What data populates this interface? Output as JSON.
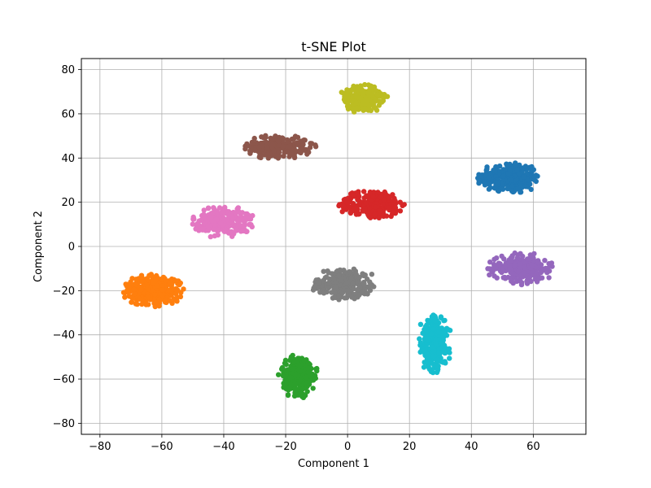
{
  "chart_data": {
    "type": "scatter",
    "title": "t-SNE Plot",
    "xlabel": "Component 1",
    "ylabel": "Component 2",
    "xlim": [
      -86,
      77
    ],
    "ylim": [
      -85,
      85
    ],
    "xticks": [
      -80,
      -60,
      -40,
      -20,
      0,
      20,
      40,
      60
    ],
    "yticks": [
      -80,
      -60,
      -40,
      -20,
      0,
      20,
      40,
      60,
      80
    ],
    "xtick_labels": [
      "−80",
      "−60",
      "−40",
      "−20",
      "0",
      "20",
      "40",
      "60"
    ],
    "ytick_labels": [
      "−80",
      "−60",
      "−40",
      "−20",
      "0",
      "20",
      "40",
      "60",
      "80"
    ],
    "grid": true,
    "legend": false,
    "clusters": [
      {
        "color": "#1f77b4",
        "center": [
          52,
          31
        ],
        "spread": [
          7,
          5
        ],
        "count": 260
      },
      {
        "color": "#ff7f0e",
        "center": [
          -63,
          -20
        ],
        "spread": [
          7,
          5
        ],
        "count": 260
      },
      {
        "color": "#2ca02c",
        "center": [
          -16,
          -59
        ],
        "spread": [
          4.5,
          7
        ],
        "count": 240
      },
      {
        "color": "#d62728",
        "center": [
          8,
          19
        ],
        "spread": [
          7.5,
          4.5
        ],
        "count": 250
      },
      {
        "color": "#9467bd",
        "center": [
          56,
          -10
        ],
        "spread": [
          7.5,
          5
        ],
        "count": 240
      },
      {
        "color": "#8c564b",
        "center": [
          -22,
          45
        ],
        "spread": [
          8,
          3.8
        ],
        "count": 240
      },
      {
        "color": "#e377c2",
        "center": [
          -40,
          11
        ],
        "spread": [
          7,
          5
        ],
        "count": 240
      },
      {
        "color": "#7f7f7f",
        "center": [
          -1,
          -17
        ],
        "spread": [
          7.5,
          5
        ],
        "count": 250
      },
      {
        "color": "#bcbd22",
        "center": [
          5,
          67
        ],
        "spread": [
          5.5,
          4.5
        ],
        "count": 240
      },
      {
        "color": "#17becf",
        "center": [
          28,
          -44
        ],
        "spread": [
          4,
          9
        ],
        "count": 250
      }
    ]
  }
}
